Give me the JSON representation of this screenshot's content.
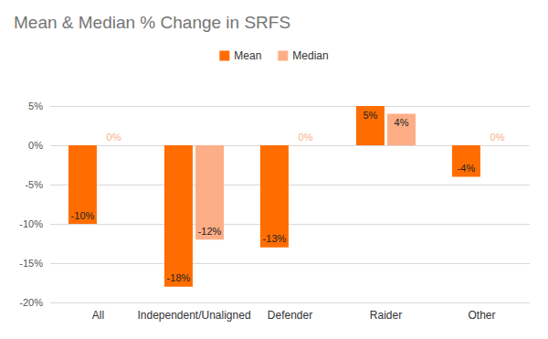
{
  "chart_data": {
    "type": "bar",
    "title": "Mean & Median % Change in SRFS",
    "categories": [
      "All",
      "Independent/Unaligned",
      "Defender",
      "Raider",
      "Other"
    ],
    "series": [
      {
        "name": "Mean",
        "color": "#ff6d01",
        "values": [
          -10,
          -18,
          -13,
          5,
          -4
        ],
        "value_labels": [
          "-10%",
          "-18%",
          "-13%",
          "5%",
          "-4%"
        ]
      },
      {
        "name": "Median",
        "color": "#fdae86",
        "values": [
          0,
          -12,
          0,
          4,
          0
        ],
        "value_labels": [
          "0%",
          "-12%",
          "0%",
          "4%",
          "0%"
        ]
      }
    ],
    "ylim": [
      -20,
      5
    ],
    "yticks": [
      {
        "value": -20,
        "label": "-20%"
      },
      {
        "value": -15,
        "label": "-15%"
      },
      {
        "value": -10,
        "label": "-10%"
      },
      {
        "value": -5,
        "label": "-5%"
      },
      {
        "value": 0,
        "label": "0%"
      },
      {
        "value": 5,
        "label": "5%"
      }
    ],
    "grid": true,
    "legend": "top",
    "data_labels": true
  }
}
